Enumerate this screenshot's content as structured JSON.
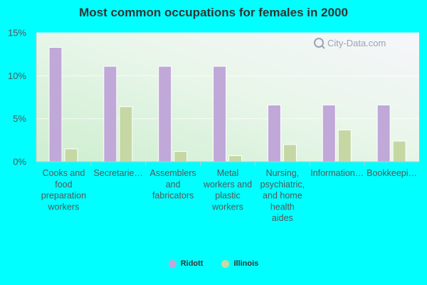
{
  "chart_data": {
    "type": "bar",
    "title": "Most common occupations for females in 2000",
    "categories": [
      "Cooks and food preparation workers",
      "Secretarie…",
      "Assemblers and fabricators",
      "Metal workers and plastic workers",
      "Nursing, psychiatric, and home health aides",
      "Information…",
      "Bookkeepi…"
    ],
    "series": [
      {
        "name": "Ridott",
        "color": "#c0a8d8",
        "values": [
          13.3,
          11.1,
          11.1,
          11.1,
          6.6,
          6.6,
          6.6
        ]
      },
      {
        "name": "Illinois",
        "color": "#c5d8a4",
        "values": [
          1.5,
          6.4,
          1.2,
          0.7,
          2.0,
          3.7,
          2.4
        ]
      }
    ],
    "yticks": [
      "0%",
      "5%",
      "10%",
      "15%"
    ],
    "ylim": [
      0,
      15
    ],
    "legend_position": "bottom",
    "grid": true,
    "watermark": "City-Data.com"
  }
}
